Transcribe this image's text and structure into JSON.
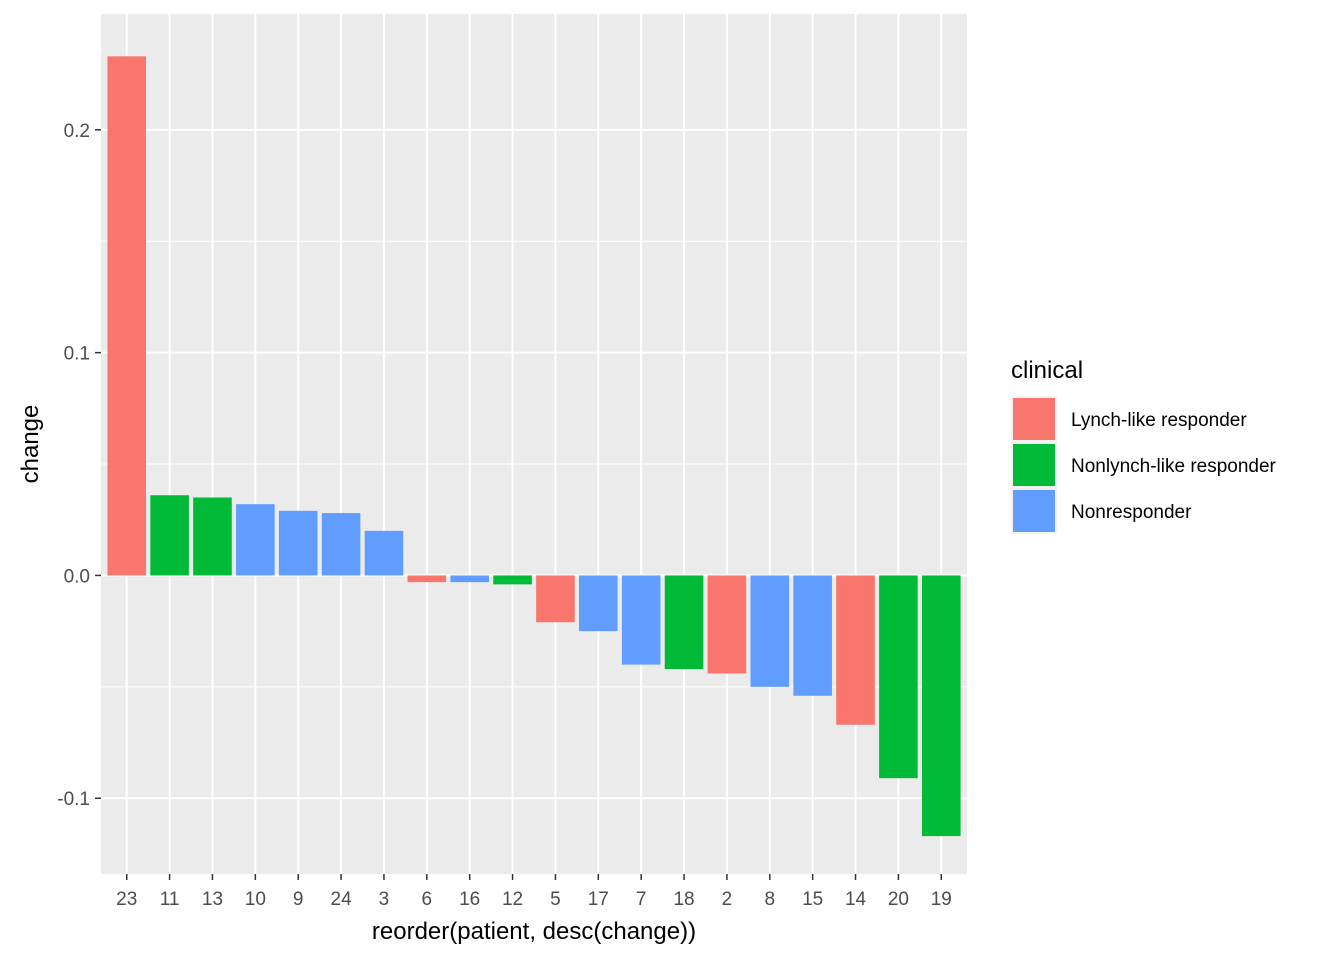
{
  "chart_data": {
    "type": "bar",
    "title": "",
    "xlabel": "reorder(patient, desc(change))",
    "ylabel": "change",
    "ylim": [
      -0.134,
      0.252
    ],
    "yticks": [
      -0.1,
      0.0,
      0.1,
      0.2
    ],
    "ytick_labels": [
      "-0.1",
      "0.0",
      "0.1",
      "0.2"
    ],
    "grid": true,
    "legend_position": "right",
    "categories": [
      "23",
      "11",
      "13",
      "10",
      "9",
      "24",
      "3",
      "6",
      "16",
      "12",
      "5",
      "17",
      "7",
      "18",
      "2",
      "8",
      "15",
      "14",
      "20",
      "19"
    ],
    "values": [
      0.233,
      0.036,
      0.035,
      0.032,
      0.029,
      0.028,
      0.02,
      -0.003,
      -0.003,
      -0.004,
      -0.021,
      -0.025,
      -0.04,
      -0.042,
      -0.044,
      -0.05,
      -0.054,
      -0.067,
      -0.091,
      -0.117
    ],
    "groups": [
      "Lynch-like responder",
      "Nonlynch-like responder",
      "Nonlynch-like responder",
      "Nonresponder",
      "Nonresponder",
      "Nonresponder",
      "Nonresponder",
      "Lynch-like responder",
      "Nonresponder",
      "Nonlynch-like responder",
      "Lynch-like responder",
      "Nonresponder",
      "Nonresponder",
      "Nonlynch-like responder",
      "Lynch-like responder",
      "Nonresponder",
      "Nonresponder",
      "Lynch-like responder",
      "Nonlynch-like responder",
      "Nonlynch-like responder"
    ],
    "legend": {
      "title": "clinical",
      "entries": [
        {
          "label": "Lynch-like responder",
          "color": "#F8766D"
        },
        {
          "label": "Nonlynch-like responder",
          "color": "#00BA38"
        },
        {
          "label": "Nonresponder",
          "color": "#619CFF"
        }
      ]
    },
    "panel_background": "#EBEBEB",
    "grid_color": "#FFFFFF"
  }
}
